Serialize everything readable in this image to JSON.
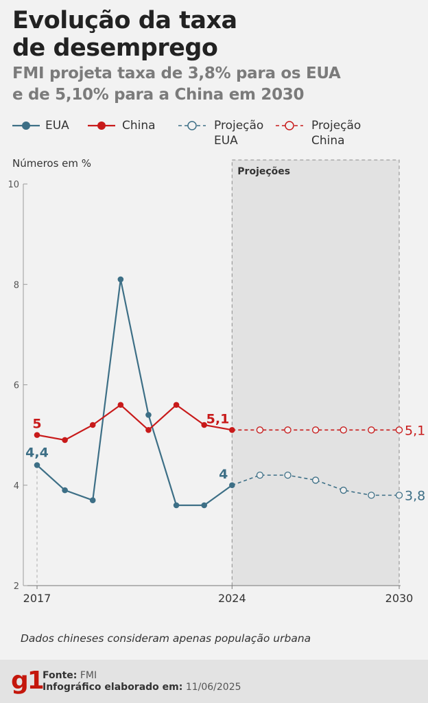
{
  "title_line1": "Evolução da taxa",
  "title_line2": "de desemprego",
  "subtitle_line1": "FMI projeta taxa de 3,8% para os EUA",
  "subtitle_line2": "e de 5,10% para a China em 2030",
  "legend": {
    "eua": "EUA",
    "china": "China",
    "proj_eua_line1": "Projeção",
    "proj_eua_line2": "EUA",
    "proj_china_line1": "Projeção",
    "proj_china_line2": "China"
  },
  "colors": {
    "eua": "#3d6f86",
    "china": "#c81a1a",
    "projection_band": "#e2e2e2"
  },
  "unit_label": "Números em %",
  "projection_label": "Projeções",
  "note": "Dados chineses consideram apenas população urbana",
  "footer": {
    "source_label": "Fonte:",
    "source_value": "FMI",
    "made_label": "Infográfico elaborado em:",
    "made_value": "11/06/2025",
    "logo": "g1"
  },
  "chart_data": {
    "type": "line",
    "x": [
      2017,
      2018,
      2019,
      2020,
      2021,
      2022,
      2023,
      2024,
      2025,
      2026,
      2027,
      2028,
      2029,
      2030
    ],
    "x_tick_labels": [
      "2017",
      "2024",
      "2030"
    ],
    "y_ticks": [
      "10",
      "8",
      "6",
      "4",
      "2"
    ],
    "ylim": [
      2,
      10
    ],
    "projection_start": 2024,
    "series": [
      {
        "name": "EUA",
        "x": [
          2017,
          2018,
          2019,
          2020,
          2021,
          2022,
          2023,
          2024
        ],
        "values": [
          4.4,
          3.9,
          3.7,
          8.1,
          5.4,
          3.6,
          3.6,
          4.0
        ]
      },
      {
        "name": "China",
        "x": [
          2017,
          2018,
          2019,
          2020,
          2021,
          2022,
          2023,
          2024
        ],
        "values": [
          5.0,
          4.9,
          5.2,
          5.6,
          5.1,
          5.6,
          5.2,
          5.1
        ]
      },
      {
        "name": "Projeção EUA",
        "x": [
          2024,
          2025,
          2026,
          2027,
          2028,
          2029,
          2030
        ],
        "values": [
          4.0,
          4.2,
          4.2,
          4.1,
          3.9,
          3.8,
          3.8
        ]
      },
      {
        "name": "Projeção China",
        "x": [
          2024,
          2025,
          2026,
          2027,
          2028,
          2029,
          2030
        ],
        "values": [
          5.1,
          5.1,
          5.1,
          5.1,
          5.1,
          5.1,
          5.1
        ]
      }
    ],
    "data_labels": {
      "eua": [
        {
          "x": 2017,
          "text": "4,4"
        },
        {
          "x": 2024,
          "text": "4"
        },
        {
          "x": 2030,
          "text": "3,8"
        }
      ],
      "china": [
        {
          "x": 2017,
          "text": "5"
        },
        {
          "x": 2024,
          "text": "5,1"
        },
        {
          "x": 2030,
          "text": "5,1"
        }
      ]
    }
  }
}
